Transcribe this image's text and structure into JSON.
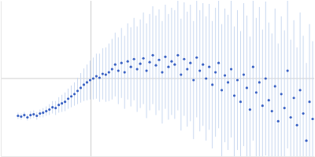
{
  "chart_data": {
    "type": "scatter",
    "x": [
      22,
      26,
      30,
      34,
      38,
      42,
      46,
      50,
      54,
      58,
      62,
      66,
      70,
      74,
      78,
      82,
      86,
      90,
      94,
      98,
      102,
      106,
      110,
      114,
      118,
      122,
      126,
      130,
      134,
      138,
      142,
      146,
      150,
      154,
      158,
      162,
      166,
      170,
      174,
      178,
      182,
      186,
      190,
      194,
      198,
      202,
      206,
      210,
      214,
      218,
      222,
      226,
      230,
      234,
      238,
      242,
      246,
      250,
      254,
      258,
      262,
      266,
      270,
      274,
      278,
      282,
      286,
      290,
      294,
      298,
      302,
      306,
      310,
      314,
      318,
      322,
      326,
      330,
      334,
      338,
      342,
      346,
      350,
      354,
      358,
      362,
      366,
      370,
      374,
      378,
      382,
      386,
      390,
      394,
      398
    ],
    "series": [
      {
        "color": "#3a62c4",
        "marker": "circle",
        "values": [
          52,
          51,
          53,
          50,
          53,
          54,
          52,
          55,
          56,
          58,
          60,
          63,
          62,
          66,
          68,
          70,
          74,
          77,
          80,
          84,
          88,
          92,
          95,
          98,
          100,
          103,
          101,
          106,
          105,
          108,
          112,
          118,
          110,
          120,
          108,
          122,
          115,
          125,
          112,
          119,
          126,
          110,
          121,
          130,
          117,
          124,
          108,
          128,
          115,
          122,
          118,
          130,
          105,
          125,
          112,
          120,
          98,
          127,
          110,
          118,
          100,
          115,
          92,
          108,
          120,
          85,
          104,
          95,
          112,
          78,
          98,
          70,
          105,
          88,
          60,
          115,
          82,
          95,
          65,
          100,
          72,
          58,
          90,
          45,
          80,
          62,
          110,
          50,
          75,
          40,
          85,
          55,
          20,
          70,
          48
        ],
        "errors": [
          4,
          4,
          4,
          4,
          5,
          5,
          5,
          5,
          6,
          6,
          7,
          8,
          9,
          10,
          11,
          12,
          13,
          14,
          15,
          17,
          19,
          21,
          23,
          25,
          27,
          29,
          31,
          33,
          35,
          37,
          39,
          41,
          43,
          45,
          47,
          49,
          51,
          53,
          55,
          57,
          59,
          61,
          62,
          63,
          64,
          65,
          66,
          67,
          68,
          69,
          70,
          71,
          72,
          73,
          74,
          75,
          76,
          77,
          78,
          79,
          80,
          81,
          82,
          83,
          84,
          85,
          86,
          87,
          88,
          89,
          90,
          91,
          92,
          93,
          94,
          95,
          96,
          97,
          98,
          99,
          100,
          100,
          100,
          100,
          100,
          100,
          100,
          100,
          100,
          100,
          100,
          100,
          100,
          100,
          100
        ],
        "error_color": "#c9d8f0"
      }
    ],
    "xlim": [
      0,
      400
    ],
    "ylim": [
      0,
      200
    ],
    "xticks": [
      115
    ],
    "yticks": [
      100
    ],
    "grid": true,
    "tick_labels": false
  }
}
